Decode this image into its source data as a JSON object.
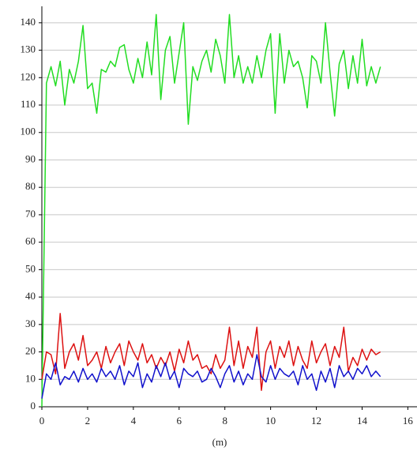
{
  "chart_data": {
    "type": "line",
    "x_label": "(m)",
    "x": [
      0,
      0.2,
      0.4,
      0.6,
      0.8,
      1,
      1.2,
      1.4,
      1.6,
      1.8,
      2,
      2.2,
      2.4,
      2.6,
      2.8,
      3,
      3.2,
      3.4,
      3.6,
      3.8,
      4,
      4.2,
      4.4,
      4.6,
      4.8,
      5,
      5.2,
      5.4,
      5.6,
      5.8,
      6,
      6.2,
      6.4,
      6.6,
      6.8,
      7,
      7.2,
      7.4,
      7.6,
      7.8,
      8,
      8.2,
      8.4,
      8.6,
      8.8,
      9,
      9.2,
      9.4,
      9.6,
      9.8,
      10,
      10.2,
      10.4,
      10.6,
      10.8,
      11,
      11.2,
      11.4,
      11.6,
      11.8,
      12,
      12.2,
      12.4,
      12.6,
      12.8,
      13,
      13.2,
      13.4,
      13.6,
      13.8,
      14,
      14.2,
      14.4,
      14.6,
      14.8
    ],
    "series": [
      {
        "color": "#22dd22",
        "values": [
          0,
          118,
          124,
          117,
          126,
          110,
          123,
          118,
          126,
          139,
          116,
          118,
          107,
          123,
          122,
          126,
          124,
          131,
          132,
          123,
          118,
          127,
          120,
          133,
          121,
          143,
          112,
          130,
          135,
          118,
          129,
          140,
          103,
          124,
          119,
          126,
          130,
          122,
          134,
          128,
          118,
          143,
          120,
          128,
          118,
          124,
          118,
          128,
          120,
          130,
          136,
          107,
          136,
          118,
          130,
          124,
          126,
          120,
          109,
          128,
          126,
          118,
          140,
          122,
          106,
          125,
          130,
          116,
          128,
          118,
          134,
          117,
          124,
          118,
          124
        ]
      },
      {
        "color": "#dd1111",
        "values": [
          10,
          20,
          19,
          12,
          34,
          14,
          20,
          23,
          17,
          26,
          15,
          17,
          20,
          14,
          22,
          16,
          20,
          23,
          15,
          24,
          20,
          17,
          23,
          16,
          19,
          14,
          18,
          15,
          20,
          13,
          21,
          16,
          24,
          17,
          19,
          14,
          15,
          12,
          19,
          14,
          17,
          29,
          15,
          24,
          14,
          22,
          18,
          29,
          6,
          20,
          24,
          14,
          22,
          18,
          24,
          15,
          22,
          17,
          14,
          24,
          16,
          20,
          23,
          15,
          22,
          18,
          29,
          13,
          18,
          15,
          21,
          17,
          21,
          19,
          20
        ]
      },
      {
        "color": "#1111cc",
        "values": [
          3,
          12,
          10,
          16,
          8,
          11,
          10,
          13,
          9,
          14,
          10,
          12,
          9,
          14,
          11,
          13,
          10,
          15,
          8,
          13,
          11,
          16,
          7,
          12,
          9,
          15,
          11,
          16,
          10,
          13,
          7,
          14,
          12,
          11,
          13,
          9,
          10,
          14,
          11,
          7,
          12,
          15,
          9,
          13,
          8,
          12,
          10,
          19,
          11,
          9,
          15,
          10,
          14,
          12,
          11,
          13,
          8,
          15,
          10,
          12,
          6,
          13,
          9,
          14,
          7,
          15,
          11,
          13,
          10,
          14,
          12,
          15,
          11,
          13,
          11
        ]
      }
    ],
    "xlim": [
      0,
      16.4
    ],
    "ylim": [
      0,
      146
    ],
    "xticks": [
      0,
      2,
      4,
      6,
      8,
      10,
      12,
      14,
      16
    ],
    "yticks": [
      0,
      10,
      20,
      30,
      40,
      50,
      60,
      70,
      80,
      90,
      100,
      110,
      120,
      130,
      140
    ],
    "grid": true
  }
}
